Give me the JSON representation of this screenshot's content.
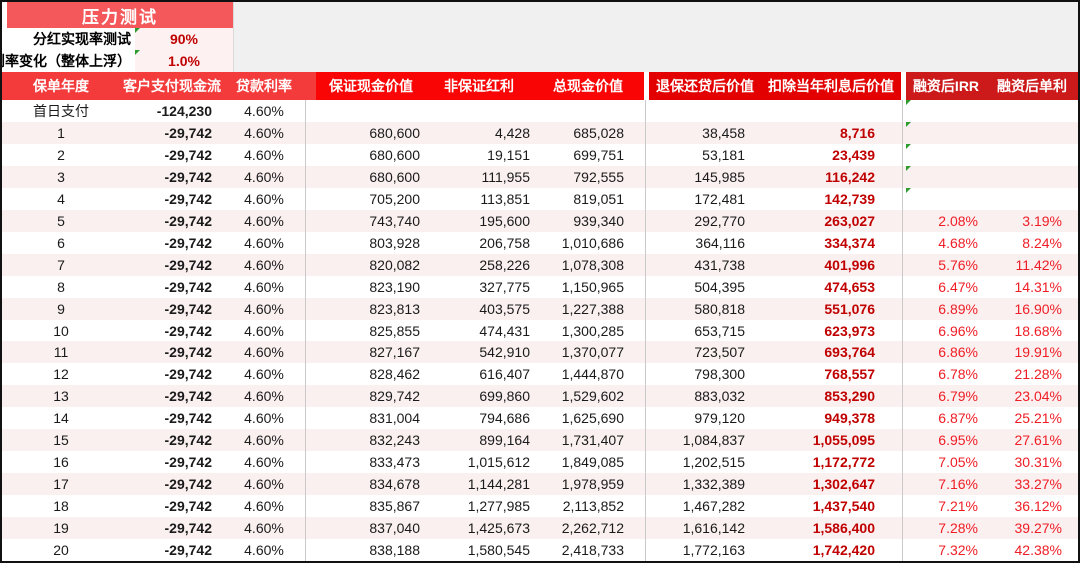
{
  "stress_box": {
    "title": "压力测试",
    "rows": [
      {
        "label": "分红实现率测试",
        "value": "90%"
      },
      {
        "label": "利率变化（整体上浮）",
        "value": "1.0%"
      }
    ]
  },
  "table": {
    "headers": [
      "保单年度",
      "客户支付现金流",
      "贷款利率",
      "保证现金价值",
      "非保证红利",
      "总现金价值",
      "退保还贷后价值",
      "扣除当年利息后价值",
      "融资后IRR",
      "融资后单利"
    ],
    "green_triangle_rows": [
      0,
      1,
      2,
      3,
      4
    ],
    "rows": [
      [
        "首日支付",
        "-124,230",
        "4.60%",
        "",
        "",
        "",
        "",
        "",
        "",
        ""
      ],
      [
        "1",
        "-29,742",
        "4.60%",
        "680,600",
        "4,428",
        "685,028",
        "38,458",
        "8,716",
        "",
        ""
      ],
      [
        "2",
        "-29,742",
        "4.60%",
        "680,600",
        "19,151",
        "699,751",
        "53,181",
        "23,439",
        "",
        ""
      ],
      [
        "3",
        "-29,742",
        "4.60%",
        "680,600",
        "111,955",
        "792,555",
        "145,985",
        "116,242",
        "",
        ""
      ],
      [
        "4",
        "-29,742",
        "4.60%",
        "705,200",
        "113,851",
        "819,051",
        "172,481",
        "142,739",
        "",
        ""
      ],
      [
        "5",
        "-29,742",
        "4.60%",
        "743,740",
        "195,600",
        "939,340",
        "292,770",
        "263,027",
        "2.08%",
        "3.19%"
      ],
      [
        "6",
        "-29,742",
        "4.60%",
        "803,928",
        "206,758",
        "1,010,686",
        "364,116",
        "334,374",
        "4.68%",
        "8.24%"
      ],
      [
        "7",
        "-29,742",
        "4.60%",
        "820,082",
        "258,226",
        "1,078,308",
        "431,738",
        "401,996",
        "5.76%",
        "11.42%"
      ],
      [
        "8",
        "-29,742",
        "4.60%",
        "823,190",
        "327,775",
        "1,150,965",
        "504,395",
        "474,653",
        "6.47%",
        "14.31%"
      ],
      [
        "9",
        "-29,742",
        "4.60%",
        "823,813",
        "403,575",
        "1,227,388",
        "580,818",
        "551,076",
        "6.89%",
        "16.90%"
      ],
      [
        "10",
        "-29,742",
        "4.60%",
        "825,855",
        "474,431",
        "1,300,285",
        "653,715",
        "623,973",
        "6.96%",
        "18.68%"
      ],
      [
        "11",
        "-29,742",
        "4.60%",
        "827,167",
        "542,910",
        "1,370,077",
        "723,507",
        "693,764",
        "6.86%",
        "19.91%"
      ],
      [
        "12",
        "-29,742",
        "4.60%",
        "828,462",
        "616,407",
        "1,444,870",
        "798,300",
        "768,557",
        "6.78%",
        "21.28%"
      ],
      [
        "13",
        "-29,742",
        "4.60%",
        "829,742",
        "699,860",
        "1,529,602",
        "883,032",
        "853,290",
        "6.79%",
        "23.04%"
      ],
      [
        "14",
        "-29,742",
        "4.60%",
        "831,004",
        "794,686",
        "1,625,690",
        "979,120",
        "949,378",
        "6.87%",
        "25.21%"
      ],
      [
        "15",
        "-29,742",
        "4.60%",
        "832,243",
        "899,164",
        "1,731,407",
        "1,084,837",
        "1,055,095",
        "6.95%",
        "27.61%"
      ],
      [
        "16",
        "-29,742",
        "4.60%",
        "833,473",
        "1,015,612",
        "1,849,085",
        "1,202,515",
        "1,172,772",
        "7.05%",
        "30.31%"
      ],
      [
        "17",
        "-29,742",
        "4.60%",
        "834,678",
        "1,144,281",
        "1,978,959",
        "1,332,389",
        "1,302,647",
        "7.16%",
        "33.27%"
      ],
      [
        "18",
        "-29,742",
        "4.60%",
        "835,867",
        "1,277,985",
        "2,113,852",
        "1,467,282",
        "1,437,540",
        "7.21%",
        "36.12%"
      ],
      [
        "19",
        "-29,742",
        "4.60%",
        "837,040",
        "1,425,673",
        "2,262,712",
        "1,616,142",
        "1,586,400",
        "7.28%",
        "39.27%"
      ],
      [
        "20",
        "-29,742",
        "4.60%",
        "838,188",
        "1,580,545",
        "2,418,733",
        "1,772,163",
        "1,742,420",
        "7.32%",
        "42.38%"
      ]
    ]
  },
  "colors": {
    "title": "#F4585A",
    "hdr1": "#F33B3B",
    "hdr2": "#F90505",
    "hdr3": "#E30000",
    "hdr4": "#CC1A1A",
    "pinkcell": "#FDF1F1",
    "stripe": "#FAF0F0",
    "darkred": "#C00000",
    "brightred": "#EF1D25"
  }
}
